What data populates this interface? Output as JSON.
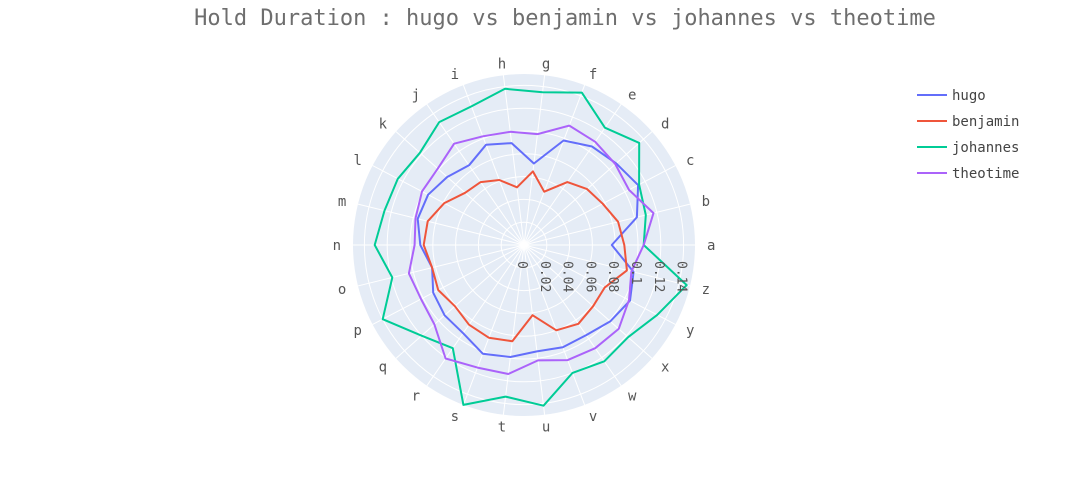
{
  "chart_data": {
    "type": "radar",
    "title": "Hold Duration : hugo vs benjamin vs johannes vs theotime",
    "categories": [
      "a",
      "b",
      "c",
      "d",
      "e",
      "f",
      "g",
      "h",
      "i",
      "j",
      "k",
      "l",
      "m",
      "n",
      "o",
      "p",
      "q",
      "r",
      "s",
      "t",
      "u",
      "v",
      "w",
      "x",
      "y",
      "z"
    ],
    "radial_ticks": [
      "0",
      "0.02",
      "0.04",
      "0.06",
      "0.08",
      "0.1",
      "0.12",
      "0.14"
    ],
    "radial_range": [
      0,
      0.15
    ],
    "angular_start_deg": 0,
    "direction": "counterclockwise",
    "grid": true,
    "legend_position": "top-right",
    "background_color": "#e5ecf6",
    "series": [
      {
        "name": "hugo",
        "color": "#636efa",
        "values": [
          0.077,
          0.102,
          0.113,
          0.108,
          0.105,
          0.098,
          0.072,
          0.09,
          0.094,
          0.085,
          0.09,
          0.095,
          0.096,
          0.091,
          0.083,
          0.09,
          0.093,
          0.094,
          0.102,
          0.099,
          0.094,
          0.096,
          0.096,
          0.101,
          0.105,
          0.099
        ]
      },
      {
        "name": "benjamin",
        "color": "#ef553b",
        "values": [
          0.088,
          0.085,
          0.078,
          0.074,
          0.067,
          0.05,
          0.065,
          0.051,
          0.061,
          0.067,
          0.069,
          0.079,
          0.087,
          0.088,
          0.083,
          0.085,
          0.081,
          0.085,
          0.087,
          0.085,
          0.062,
          0.08,
          0.084,
          0.081,
          0.08,
          0.093
        ]
      },
      {
        "name": "johannes",
        "color": "#00cc96",
        "values": [
          0.105,
          0.11,
          0.114,
          0.135,
          0.125,
          0.143,
          0.135,
          0.138,
          0.13,
          0.131,
          0.122,
          0.125,
          0.126,
          0.131,
          0.119,
          0.14,
          0.12,
          0.11,
          0.15,
          0.134,
          0.142,
          0.12,
          0.124,
          0.122,
          0.132,
          0.147
        ]
      },
      {
        "name": "theotime",
        "color": "#ab63fa",
        "values": [
          0.105,
          0.117,
          0.104,
          0.107,
          0.11,
          0.112,
          0.098,
          0.1,
          0.102,
          0.108,
          0.101,
          0.101,
          0.098,
          0.096,
          0.104,
          0.102,
          0.105,
          0.121,
          0.115,
          0.114,
          0.102,
          0.108,
          0.11,
          0.111,
          0.104,
          0.097
        ]
      }
    ]
  }
}
